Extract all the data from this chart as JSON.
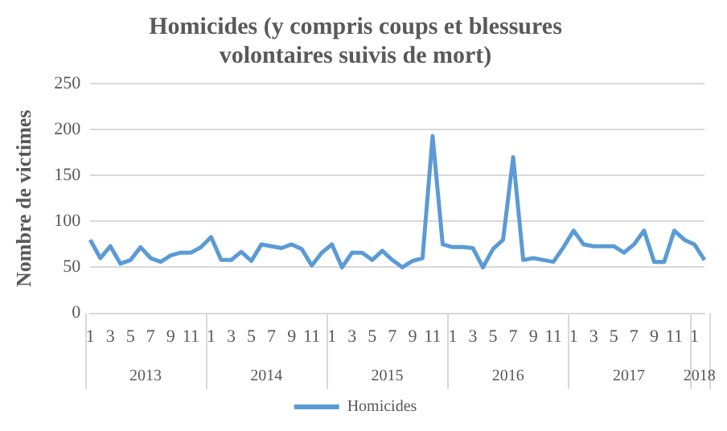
{
  "chart_data": {
    "type": "line",
    "title": "Homicides (y compris coups et blessures volontaires suivis de mort)",
    "ylabel": "Nombre de victimes",
    "categories": [
      "1",
      null,
      "3",
      null,
      "5",
      null,
      "7",
      null,
      "9",
      null,
      "11",
      null,
      "1",
      null,
      "3",
      null,
      "5",
      null,
      "7",
      null,
      "9",
      null,
      "11",
      null,
      "1",
      null,
      "3",
      null,
      "5",
      null,
      "7",
      null,
      "9",
      null,
      "11",
      null,
      "1",
      null,
      "3",
      null,
      "5",
      null,
      "7",
      null,
      "9",
      null,
      "11",
      null,
      "1",
      null,
      "3",
      null,
      "5",
      null,
      "7",
      null,
      "9",
      null,
      "11",
      null,
      "1",
      null
    ],
    "annotations": [
      "2013",
      "2014",
      "2015",
      "2016",
      "2017",
      "2018"
    ],
    "series": [
      {
        "name": "Homicides",
        "color": "#5b9bd5",
        "values": [
          80,
          60,
          73,
          54,
          58,
          72,
          60,
          56,
          63,
          66,
          66,
          72,
          83,
          58,
          58,
          67,
          57,
          75,
          73,
          71,
          75,
          70,
          52,
          66,
          75,
          50,
          66,
          66,
          58,
          68,
          58,
          50,
          57,
          60,
          193,
          75,
          72,
          72,
          71,
          50,
          70,
          80,
          170,
          58,
          60,
          58,
          56,
          72,
          90,
          75,
          73,
          73,
          73,
          66,
          75,
          90,
          56,
          56,
          90,
          80,
          75,
          58
        ]
      }
    ],
    "ylim": [
      0,
      250
    ],
    "yticks": [
      0,
      50,
      100,
      150,
      200,
      250
    ],
    "grid": "y",
    "legend": "bottom",
    "marker": "none",
    "line_style": "solid"
  }
}
